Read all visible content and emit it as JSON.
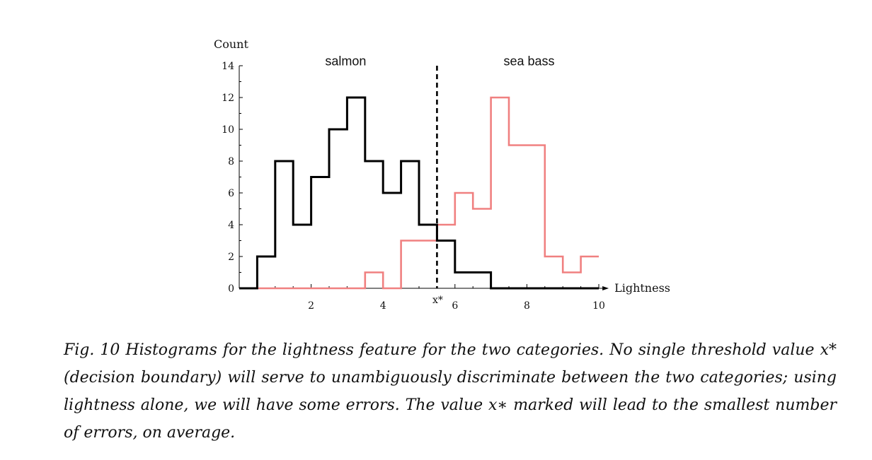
{
  "chart_data": {
    "type": "bar",
    "ylabel": "Count",
    "xlabel": "Lightness",
    "xlim": [
      0,
      10
    ],
    "ylim": [
      0,
      14
    ],
    "xticks": [
      2,
      4,
      6,
      8,
      10
    ],
    "yticks": [
      0,
      2,
      4,
      6,
      8,
      10,
      12,
      14
    ],
    "grid": false,
    "bin_edges": [
      0,
      0.5,
      1,
      1.5,
      2,
      2.5,
      3,
      3.5,
      4,
      4.5,
      5,
      5.5,
      6,
      6.5,
      7,
      7.5,
      8,
      8.5,
      9,
      9.5,
      10
    ],
    "series": [
      {
        "name": "salmon",
        "color": "#000000",
        "values": [
          0,
          2,
          8,
          4,
          7,
          10,
          12,
          8,
          6,
          8,
          4,
          3,
          1,
          1,
          0,
          0,
          0,
          0,
          0,
          0
        ]
      },
      {
        "name": "sea bass",
        "color": "#f08080",
        "values": [
          0,
          0,
          0,
          0,
          0,
          0,
          0,
          1,
          0,
          3,
          3,
          4,
          6,
          5,
          12,
          9,
          9,
          2,
          1,
          2
        ]
      }
    ],
    "threshold": {
      "x": 5.5,
      "label": "x*",
      "style": "dashed"
    }
  },
  "caption": "Fig. 10 Histograms for the lightness feature for the two categories. No single threshold value x* (decision boundary) will serve to unambiguously discriminate between the two categories; using lightness alone, we will have some errors. The value x∗ marked will lead to the smallest number of errors, on average."
}
